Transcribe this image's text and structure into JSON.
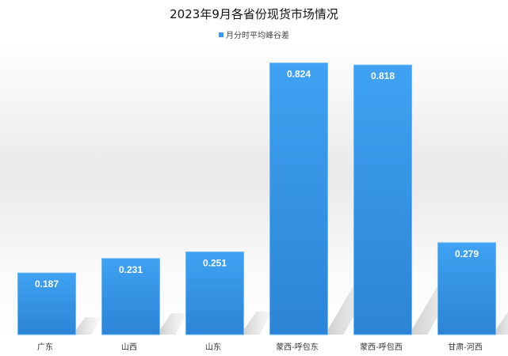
{
  "chart_data": {
    "type": "bar",
    "title": "2023年9月各省份现货市场情况",
    "categories": [
      "广东",
      "山西",
      "山东",
      "蒙西-呼包东",
      "蒙西-呼包西",
      "甘肃-河西"
    ],
    "series": [
      {
        "name": "月分时平均峰谷差",
        "values": [
          0.187,
          0.231,
          0.251,
          0.824,
          0.818,
          0.279
        ],
        "value_labels": [
          "0.187",
          "0.231",
          "0.251",
          "0.824",
          "0.818",
          "0.279"
        ]
      }
    ],
    "ylim": [
      0,
      0.9
    ],
    "grid": false,
    "legend_position": "top-center",
    "bar_color": "#3a9bef",
    "bar_color_dark": "#2f86d9"
  }
}
